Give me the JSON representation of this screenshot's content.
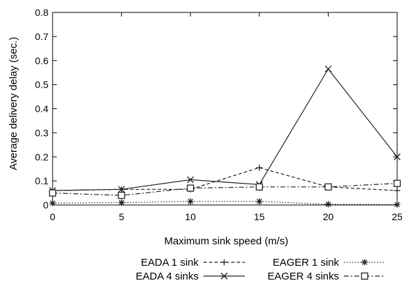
{
  "chart_data": {
    "type": "line",
    "title": "",
    "xlabel": "Maximum sink speed (m/s)",
    "ylabel": "Average delivery delay (sec.)",
    "xlim": [
      0,
      25
    ],
    "ylim": [
      0,
      0.8
    ],
    "xticks": [
      0,
      5,
      10,
      15,
      20,
      25
    ],
    "yticks": [
      0,
      0.1,
      0.2,
      0.3,
      0.4,
      0.5,
      0.6,
      0.7,
      0.8
    ],
    "grid": false,
    "legend_position": "bottom",
    "x": [
      0,
      5,
      10,
      15,
      20,
      25
    ],
    "series": [
      {
        "name": "EADA 1 sink",
        "line_style": "dashed",
        "marker": "plus",
        "values": [
          0.06,
          0.065,
          0.065,
          0.155,
          0.075,
          0.06
        ]
      },
      {
        "name": "EADA 4 sinks",
        "line_style": "solid",
        "marker": "x",
        "values": [
          0.06,
          0.065,
          0.105,
          0.085,
          0.565,
          0.2
        ]
      },
      {
        "name": "EAGER 1 sink",
        "line_style": "dotted",
        "marker": "asterisk",
        "values": [
          0.008,
          0.01,
          0.015,
          0.015,
          0.003,
          0.002
        ]
      },
      {
        "name": "EAGER 4 sinks",
        "line_style": "dashdot",
        "marker": "square",
        "values": [
          0.05,
          0.04,
          0.07,
          0.075,
          0.075,
          0.09
        ]
      }
    ]
  }
}
